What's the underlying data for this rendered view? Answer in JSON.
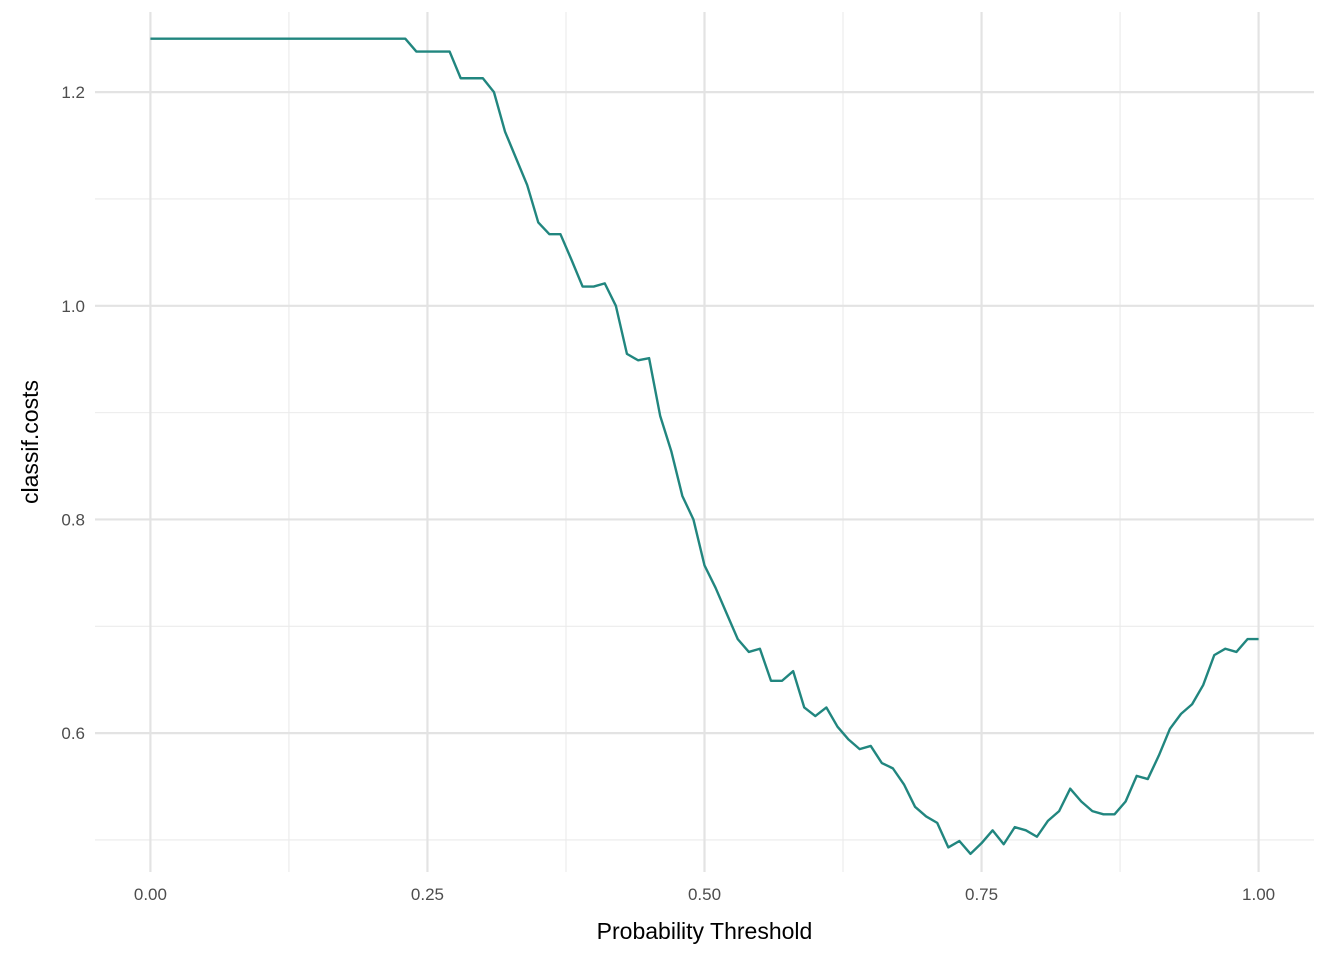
{
  "chart_data": {
    "type": "line",
    "title": "",
    "xlabel": "Probability Threshold",
    "ylabel": "classif.costs",
    "xlim": [
      -0.05,
      1.05
    ],
    "ylim": [
      0.47,
      1.275
    ],
    "x_ticks": [
      0.0,
      0.25,
      0.5,
      0.75,
      1.0
    ],
    "x_tick_labels": [
      "0.00",
      "0.25",
      "0.50",
      "0.75",
      "1.00"
    ],
    "y_ticks": [
      0.6,
      0.8,
      1.0,
      1.2
    ],
    "y_tick_labels": [
      "0.6",
      "0.8",
      "1.0",
      "1.2"
    ],
    "x_minor_ticks": [
      0.125,
      0.375,
      0.625,
      0.875
    ],
    "y_minor_ticks": [
      0.5,
      0.7,
      0.9,
      1.1
    ],
    "grid": true,
    "legend": "none",
    "series": [
      {
        "color": "#21867f",
        "x": [
          0.0,
          0.01,
          0.02,
          0.03,
          0.04,
          0.05,
          0.06,
          0.07,
          0.08,
          0.09,
          0.1,
          0.11,
          0.12,
          0.13,
          0.14,
          0.15,
          0.16,
          0.17,
          0.18,
          0.19,
          0.2,
          0.21,
          0.22,
          0.23,
          0.24,
          0.25,
          0.26,
          0.27,
          0.28,
          0.29,
          0.3,
          0.31,
          0.32,
          0.33,
          0.34,
          0.35,
          0.36,
          0.37,
          0.38,
          0.39,
          0.4,
          0.41,
          0.42,
          0.43,
          0.44,
          0.45,
          0.46,
          0.47,
          0.48,
          0.49,
          0.5,
          0.51,
          0.52,
          0.53,
          0.54,
          0.55,
          0.56,
          0.57,
          0.58,
          0.59,
          0.6,
          0.61,
          0.62,
          0.63,
          0.64,
          0.65,
          0.66,
          0.67,
          0.68,
          0.69,
          0.7,
          0.71,
          0.72,
          0.73,
          0.74,
          0.75,
          0.76,
          0.77,
          0.78,
          0.79,
          0.8,
          0.81,
          0.82,
          0.83,
          0.84,
          0.85,
          0.86,
          0.87,
          0.88,
          0.89,
          0.9,
          0.91,
          0.92,
          0.93,
          0.94,
          0.95,
          0.96,
          0.97,
          0.98,
          0.99,
          1.0
        ],
        "y": [
          1.25,
          1.25,
          1.25,
          1.25,
          1.25,
          1.25,
          1.25,
          1.25,
          1.25,
          1.25,
          1.25,
          1.25,
          1.25,
          1.25,
          1.25,
          1.25,
          1.25,
          1.25,
          1.25,
          1.25,
          1.25,
          1.25,
          1.25,
          1.25,
          1.238,
          1.238,
          1.238,
          1.238,
          1.213,
          1.213,
          1.213,
          1.2,
          1.163,
          1.138,
          1.113,
          1.078,
          1.067,
          1.067,
          1.043,
          1.018,
          1.018,
          1.021,
          1.0,
          0.955,
          0.949,
          0.951,
          0.897,
          0.864,
          0.822,
          0.8,
          0.757,
          0.736,
          0.712,
          0.688,
          0.676,
          0.679,
          0.649,
          0.649,
          0.658,
          0.624,
          0.616,
          0.624,
          0.606,
          0.594,
          0.585,
          0.588,
          0.572,
          0.567,
          0.552,
          0.531,
          0.522,
          0.516,
          0.493,
          0.499,
          0.487,
          0.497,
          0.509,
          0.496,
          0.512,
          0.509,
          0.503,
          0.518,
          0.527,
          0.548,
          0.536,
          0.527,
          0.524,
          0.524,
          0.536,
          0.56,
          0.557,
          0.579,
          0.604,
          0.618,
          0.627,
          0.645,
          0.673,
          0.679,
          0.676,
          0.688,
          0.688
        ]
      }
    ]
  }
}
